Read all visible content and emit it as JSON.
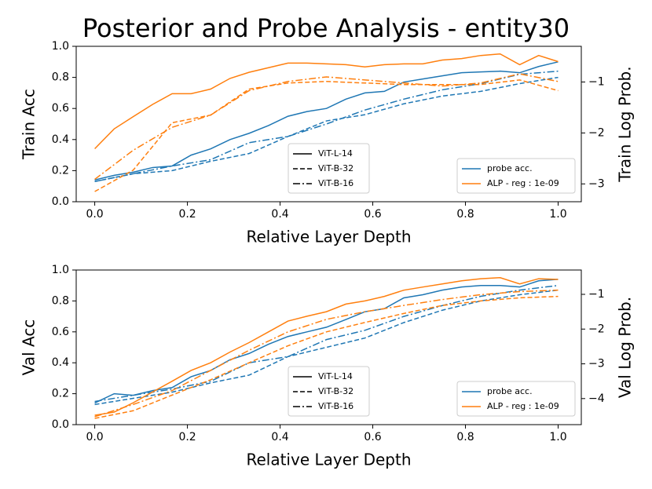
{
  "title": "Posterior and Probe Analysis - entity30",
  "chart_data": [
    {
      "type": "line",
      "xlabel": "Relative Layer Depth",
      "ylabel": "Train Acc",
      "y2label": "Train Log Prob.",
      "xlim": [
        -0.04,
        1.05
      ],
      "xticks": [
        {
          "value": 0,
          "label": "0.0"
        },
        0.2,
        0.4,
        0.6,
        0.8,
        {
          "value": 1,
          "label": "1.0"
        }
      ],
      "ylim": [
        0,
        1
      ],
      "yticks": [
        {
          "value": 0,
          "label": "0.0"
        },
        0.2,
        0.4,
        0.6,
        0.8,
        {
          "value": 1,
          "label": "1.0"
        }
      ],
      "y2lim": [
        -3.35,
        -0.3
      ],
      "y2ticks": [
        {
          "value": -1,
          "label": "−1"
        },
        {
          "value": -2,
          "label": "−2"
        },
        {
          "value": -3,
          "label": "−3"
        }
      ],
      "styles": [
        {
          "name": "ViT-L-14",
          "dash": "solid"
        },
        {
          "name": "ViT-B-32",
          "dash": "dashed"
        },
        {
          "name": "ViT-B-16",
          "dash": "dashdot"
        }
      ],
      "style_legend_loc": "lower center",
      "legend_loc": "lower right",
      "series": [
        {
          "name": "probe acc.",
          "color": "#1f77b4",
          "axis": "y",
          "lines": [
            {
              "x": [
                0,
                0.042,
                0.083,
                0.125,
                0.167,
                0.208,
                0.25,
                0.292,
                0.333,
                0.375,
                0.417,
                0.458,
                0.5,
                0.542,
                0.583,
                0.625,
                0.667,
                0.708,
                0.75,
                0.792,
                0.833,
                0.875,
                0.917,
                0.958,
                1
              ],
              "values": [
                0.14,
                0.17,
                0.19,
                0.22,
                0.23,
                0.3,
                0.34,
                0.4,
                0.44,
                0.49,
                0.55,
                0.58,
                0.6,
                0.66,
                0.7,
                0.71,
                0.77,
                0.79,
                0.81,
                0.83,
                0.835,
                0.84,
                0.83,
                0.87,
                0.9
              ]
            },
            {
              "x": [
                0,
                0.083,
                0.167,
                0.25,
                0.333,
                0.417,
                0.5,
                0.583,
                0.667,
                0.75,
                0.833,
                0.917,
                1
              ],
              "values": [
                0.13,
                0.18,
                0.2,
                0.26,
                0.31,
                0.42,
                0.52,
                0.56,
                0.63,
                0.68,
                0.71,
                0.76,
                0.8
              ]
            },
            {
              "x": [
                0,
                0.083,
                0.167,
                0.25,
                0.333,
                0.417,
                0.5,
                0.583,
                0.667,
                0.75,
                0.833,
                0.917,
                1
              ],
              "values": [
                0.13,
                0.18,
                0.23,
                0.27,
                0.38,
                0.42,
                0.5,
                0.59,
                0.66,
                0.72,
                0.76,
                0.82,
                0.84
              ]
            }
          ]
        },
        {
          "name": "ALP - reg : 1e-09",
          "color": "#ff7f0e",
          "axis": "y2",
          "lines": [
            {
              "x": [
                0,
                0.042,
                0.083,
                0.125,
                0.167,
                0.208,
                0.25,
                0.292,
                0.333,
                0.375,
                0.417,
                0.458,
                0.5,
                0.542,
                0.583,
                0.625,
                0.667,
                0.708,
                0.75,
                0.792,
                0.833,
                0.875,
                0.917,
                0.958,
                1
              ],
              "values": [
                -2.31,
                -1.92,
                -1.68,
                -1.44,
                -1.23,
                -1.23,
                -1.14,
                -0.93,
                -0.81,
                -0.72,
                -0.63,
                -0.63,
                -0.645,
                -0.66,
                -0.705,
                -0.66,
                -0.645,
                -0.645,
                -0.57,
                -0.54,
                -0.48,
                -0.45,
                -0.66,
                -0.48,
                -0.6
              ]
            },
            {
              "x": [
                0,
                0.083,
                0.167,
                0.25,
                0.333,
                0.417,
                0.5,
                0.583,
                0.667,
                0.75,
                0.833,
                0.917,
                1
              ],
              "values": [
                -3.15,
                -2.73,
                -1.8,
                -1.65,
                -1.14,
                -1.02,
                -0.99,
                -1.02,
                -1.05,
                -1.05,
                -1.05,
                -0.96,
                -1.17
              ]
            },
            {
              "x": [
                0,
                0.083,
                0.167,
                0.25,
                0.333,
                0.417,
                0.5,
                0.583,
                0.667,
                0.75,
                0.833,
                0.917,
                1
              ],
              "values": [
                -2.91,
                -2.34,
                -1.89,
                -1.65,
                -1.17,
                -0.99,
                -0.9,
                -0.96,
                -1.02,
                -1.08,
                -1.02,
                -0.84,
                -0.99
              ]
            }
          ]
        }
      ]
    },
    {
      "type": "line",
      "xlabel": "Relative Layer Depth",
      "ylabel": "Val Acc",
      "y2label": "Val Log Prob.",
      "xlim": [
        -0.04,
        1.05
      ],
      "xticks": [
        {
          "value": 0,
          "label": "0.0"
        },
        0.2,
        0.4,
        0.6,
        0.8,
        {
          "value": 1,
          "label": "1.0"
        }
      ],
      "ylim": [
        0,
        1
      ],
      "yticks": [
        {
          "value": 0,
          "label": "0.0"
        },
        0.2,
        0.4,
        0.6,
        0.8,
        {
          "value": 1,
          "label": "1.0"
        }
      ],
      "y2lim": [
        -4.75,
        -0.3
      ],
      "y2ticks": [
        {
          "value": -1,
          "label": "−1"
        },
        {
          "value": -2,
          "label": "−2"
        },
        {
          "value": -3,
          "label": "−3"
        },
        {
          "value": -4,
          "label": "−4"
        }
      ],
      "styles": [
        {
          "name": "ViT-L-14",
          "dash": "solid"
        },
        {
          "name": "ViT-B-32",
          "dash": "dashed"
        },
        {
          "name": "ViT-B-16",
          "dash": "dashdot"
        }
      ],
      "style_legend_loc": "lower center",
      "legend_loc": "lower right",
      "series": [
        {
          "name": "probe acc.",
          "color": "#1f77b4",
          "axis": "y",
          "lines": [
            {
              "x": [
                0,
                0.042,
                0.083,
                0.125,
                0.167,
                0.208,
                0.25,
                0.292,
                0.333,
                0.375,
                0.417,
                0.458,
                0.5,
                0.542,
                0.583,
                0.625,
                0.667,
                0.708,
                0.75,
                0.792,
                0.833,
                0.875,
                0.917,
                0.958,
                1
              ],
              "values": [
                0.14,
                0.2,
                0.19,
                0.22,
                0.24,
                0.31,
                0.35,
                0.42,
                0.46,
                0.52,
                0.57,
                0.6,
                0.63,
                0.68,
                0.73,
                0.75,
                0.82,
                0.84,
                0.87,
                0.89,
                0.9,
                0.9,
                0.89,
                0.93,
                0.94
              ]
            },
            {
              "x": [
                0,
                0.083,
                0.167,
                0.25,
                0.333,
                0.417,
                0.5,
                0.583,
                0.667,
                0.75,
                0.833,
                0.917,
                1
              ],
              "values": [
                0.13,
                0.17,
                0.21,
                0.27,
                0.32,
                0.44,
                0.5,
                0.56,
                0.66,
                0.74,
                0.8,
                0.84,
                0.87
              ]
            },
            {
              "x": [
                0,
                0.083,
                0.167,
                0.25,
                0.333,
                0.417,
                0.5,
                0.583,
                0.667,
                0.75,
                0.833,
                0.917,
                1
              ],
              "values": [
                0.15,
                0.19,
                0.23,
                0.28,
                0.4,
                0.44,
                0.55,
                0.61,
                0.7,
                0.77,
                0.83,
                0.87,
                0.9
              ]
            }
          ]
        },
        {
          "name": "ALP - reg : 1e-09",
          "color": "#ff7f0e",
          "axis": "y2",
          "lines": [
            {
              "x": [
                0,
                0.042,
                0.083,
                0.125,
                0.167,
                0.208,
                0.25,
                0.292,
                0.333,
                0.375,
                0.417,
                0.458,
                0.5,
                0.542,
                0.583,
                0.625,
                0.667,
                0.708,
                0.75,
                0.792,
                0.833,
                0.875,
                0.917,
                0.958,
                1
              ],
              "values": [
                -4.48,
                -4.39,
                -4.12,
                -3.81,
                -3.5,
                -3.19,
                -2.97,
                -2.66,
                -2.39,
                -2.08,
                -1.77,
                -1.63,
                -1.5,
                -1.28,
                -1.19,
                -1.06,
                -0.88,
                -0.79,
                -0.7,
                -0.61,
                -0.55,
                -0.52,
                -0.7,
                -0.55,
                -0.57
              ]
            },
            {
              "x": [
                0,
                0.083,
                0.167,
                0.25,
                0.333,
                0.417,
                0.5,
                0.583,
                0.667,
                0.75,
                0.833,
                0.917,
                1
              ],
              "values": [
                -4.57,
                -4.35,
                -3.9,
                -3.46,
                -2.97,
                -2.48,
                -2.08,
                -1.81,
                -1.55,
                -1.32,
                -1.19,
                -1.1,
                -1.06
              ]
            },
            {
              "x": [
                0,
                0.083,
                0.167,
                0.25,
                0.333,
                0.417,
                0.5,
                0.583,
                0.667,
                0.75,
                0.833,
                0.917,
                1
              ],
              "values": [
                -4.52,
                -4.17,
                -3.77,
                -3.19,
                -2.61,
                -2.08,
                -1.72,
                -1.5,
                -1.32,
                -1.15,
                -1.01,
                -0.92,
                -0.88
              ]
            }
          ]
        }
      ]
    }
  ]
}
